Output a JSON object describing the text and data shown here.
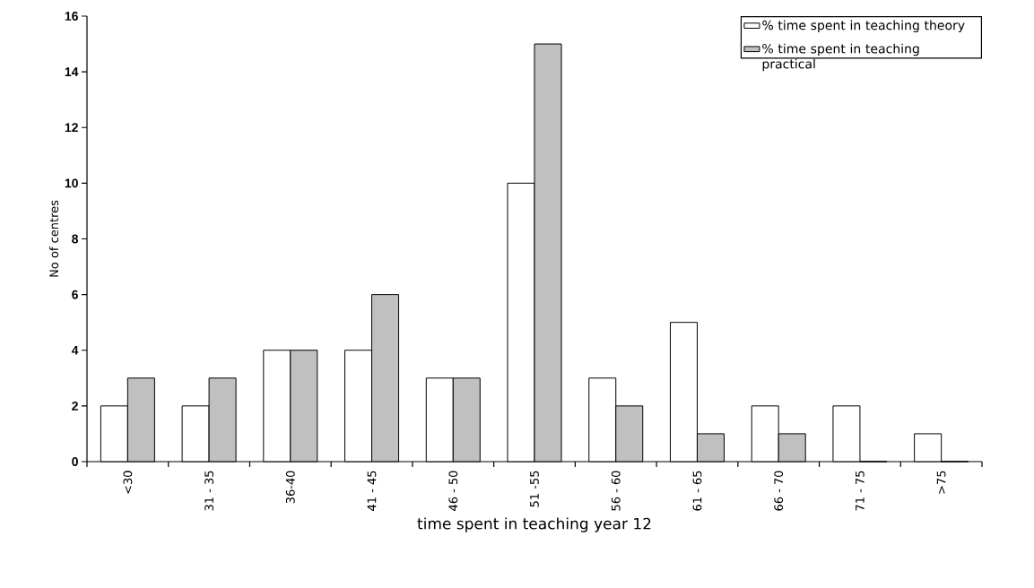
{
  "chart_data": {
    "type": "bar",
    "xlabel": "time spent in teaching year 12",
    "ylabel": "No of centres",
    "categories": [
      "<30",
      "31 - 35",
      "36-40",
      "41 - 45",
      "46 - 50",
      "51 -55",
      "56 - 60",
      "61 - 65",
      "66 - 70",
      "71 - 75",
      ">75"
    ],
    "series": [
      {
        "name": "% time spent in teaching theory",
        "color": "#ffffff",
        "values": [
          2,
          2,
          4,
          4,
          3,
          10,
          3,
          5,
          2,
          2,
          1
        ]
      },
      {
        "name": "% time spent in teaching practical",
        "color": "#c0c0c0",
        "values": [
          3,
          3,
          4,
          6,
          3,
          15,
          2,
          1,
          1,
          0,
          0
        ]
      }
    ],
    "ylim": [
      0,
      16
    ],
    "yticks": [
      0,
      2,
      4,
      6,
      8,
      10,
      12,
      14,
      16
    ],
    "legend": "top right",
    "grid": false
  }
}
